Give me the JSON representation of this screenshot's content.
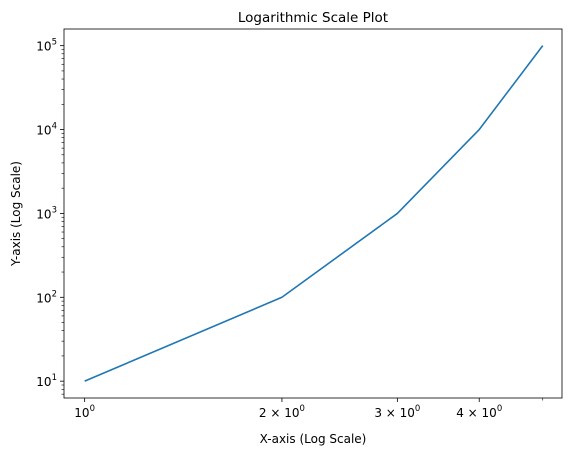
{
  "chart_data": {
    "type": "line",
    "title": "Logarithmic Scale Plot",
    "xlabel": "X-axis (Log Scale)",
    "ylabel": "Y-axis (Log Scale)",
    "xscale": "log",
    "yscale": "log",
    "xlim": [
      0.93,
      5.35
    ],
    "ylim": [
      6.3,
      158000
    ],
    "grid": false,
    "legend": "none",
    "x_ticks": [
      {
        "value": 1,
        "base": "10",
        "exp": "0"
      },
      {
        "value": 2,
        "base": "2 × 10",
        "exp": "0"
      },
      {
        "value": 3,
        "base": "3 × 10",
        "exp": "0"
      },
      {
        "value": 4,
        "base": "4 × 10",
        "exp": "0"
      }
    ],
    "x_minor_ticks": [
      5
    ],
    "y_ticks": [
      {
        "value": 10,
        "base": "10",
        "exp": "1"
      },
      {
        "value": 100,
        "base": "10",
        "exp": "2"
      },
      {
        "value": 1000,
        "base": "10",
        "exp": "3"
      },
      {
        "value": 10000,
        "base": "10",
        "exp": "4"
      },
      {
        "value": 100000,
        "base": "10",
        "exp": "5"
      }
    ],
    "series": [
      {
        "color": "#1f77b4",
        "x": [
          1,
          2,
          3,
          4,
          5
        ],
        "y": [
          10,
          100,
          1000,
          10000,
          100000
        ]
      }
    ]
  }
}
